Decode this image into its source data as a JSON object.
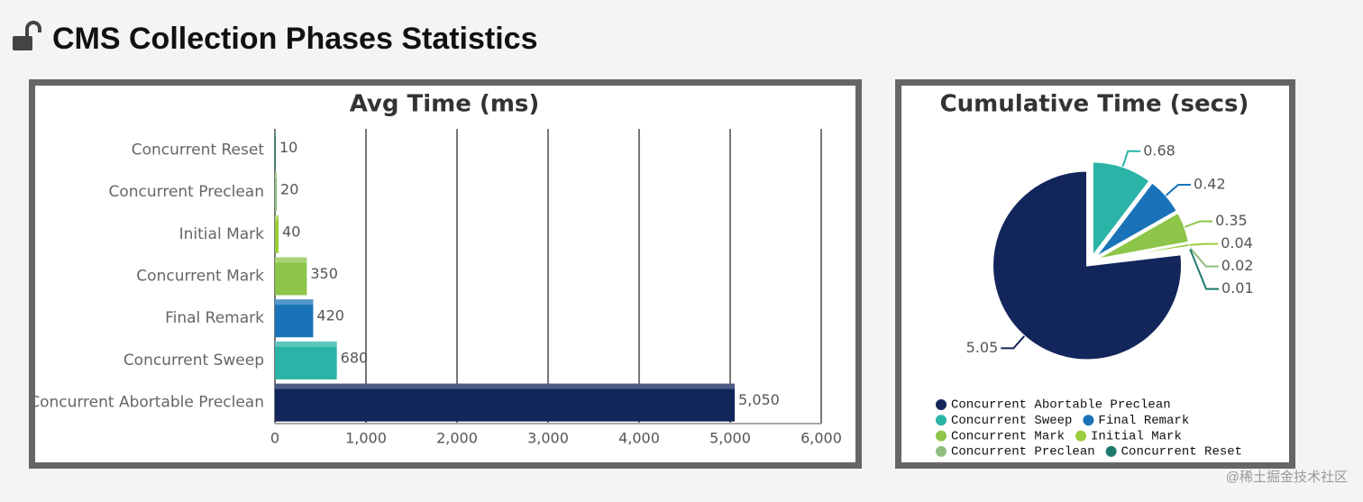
{
  "header": {
    "title": "CMS Collection Phases Statistics"
  },
  "chart_data": [
    {
      "type": "hbar",
      "title": "Avg Time (ms)",
      "categories": [
        "Concurrent Reset",
        "Concurrent Preclean",
        "Initial Mark",
        "Concurrent Mark",
        "Final Remark",
        "Concurrent Sweep",
        "Concurrent Abortable Preclean"
      ],
      "values": [
        10,
        20,
        40,
        350,
        420,
        680,
        5050
      ],
      "value_labels": [
        "10",
        "20",
        "40",
        "350",
        "420",
        "680",
        "5,050"
      ],
      "colors": [
        "#1f7a6e",
        "#8fbf7f",
        "#9acd3c",
        "#8dc54a",
        "#1a73b8",
        "#2ab3a6",
        "#13265c"
      ],
      "xlim": [
        0,
        6000
      ],
      "xticks": [
        0,
        {
          "value": 1000,
          "label": "1,000"
        },
        {
          "value": 2000,
          "label": "2,000"
        },
        {
          "value": 3000,
          "label": "3,000"
        },
        {
          "value": 4000,
          "label": "4,000"
        },
        {
          "value": 5000,
          "label": "5,000"
        },
        {
          "value": 6000,
          "label": "6,000"
        }
      ],
      "grid": true
    },
    {
      "type": "pie",
      "title": "Cumulative Time (secs)",
      "categories": [
        "Concurrent Abortable Preclean",
        "Concurrent Sweep",
        "Final Remark",
        "Concurrent Mark",
        "Initial Mark",
        "Concurrent Preclean",
        "Concurrent Reset"
      ],
      "values": [
        5.05,
        0.68,
        0.42,
        0.35,
        0.04,
        0.02,
        0.01
      ],
      "colors": [
        "#13265c",
        "#2ab3a6",
        "#1a73b8",
        "#8dc54a",
        "#9acd3c",
        "#8fbf7f",
        "#1f7a6e"
      ],
      "legend": "bottom"
    }
  ],
  "watermark": "@稀土掘金技术社区"
}
